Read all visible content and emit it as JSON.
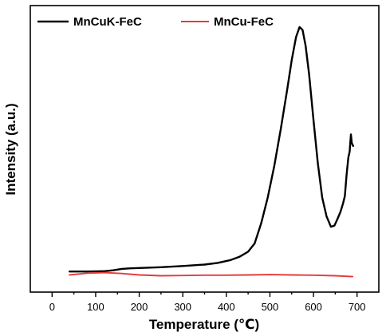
{
  "chart_data": {
    "type": "line",
    "title": "",
    "xlabel": "Temperature (℃)",
    "ylabel": "Intensity (a.u.)",
    "xlim": [
      -50,
      750
    ],
    "ylim": [
      0,
      100
    ],
    "xticks": [
      0,
      100,
      200,
      300,
      400,
      500,
      600,
      700
    ],
    "xtick_labels": [
      "0",
      "100",
      "200",
      "300",
      "400",
      "500",
      "600",
      "700"
    ],
    "y_tick_labels_shown": false,
    "grid": false,
    "legend_position": "top",
    "series": [
      {
        "name": "MnCuK-FeC",
        "color": "#000000",
        "points": [
          [
            40,
            7.2
          ],
          [
            80,
            7.2
          ],
          [
            120,
            7.3
          ],
          [
            140,
            7.6
          ],
          [
            160,
            8.1
          ],
          [
            180,
            8.3
          ],
          [
            200,
            8.4
          ],
          [
            250,
            8.7
          ],
          [
            300,
            9.1
          ],
          [
            350,
            9.6
          ],
          [
            380,
            10.2
          ],
          [
            410,
            11.2
          ],
          [
            430,
            12.3
          ],
          [
            450,
            14.1
          ],
          [
            465,
            17.0
          ],
          [
            480,
            24.0
          ],
          [
            495,
            33.0
          ],
          [
            510,
            44.0
          ],
          [
            525,
            57.0
          ],
          [
            540,
            71.0
          ],
          [
            550,
            81.0
          ],
          [
            560,
            89.0
          ],
          [
            568,
            92.5
          ],
          [
            575,
            91.5
          ],
          [
            582,
            86.0
          ],
          [
            590,
            76.0
          ],
          [
            600,
            60.0
          ],
          [
            610,
            45.0
          ],
          [
            620,
            33.0
          ],
          [
            630,
            26.5
          ],
          [
            640,
            22.8
          ],
          [
            648,
            23.2
          ],
          [
            655,
            25.5
          ],
          [
            662,
            28.0
          ],
          [
            668,
            31.0
          ],
          [
            672,
            33.5
          ],
          [
            676,
            41.0
          ],
          [
            680,
            47.0
          ],
          [
            683,
            49.0
          ],
          [
            686,
            55.0
          ],
          [
            688,
            52.0
          ],
          [
            691,
            51.0
          ]
        ]
      },
      {
        "name": "MnCu-FeC",
        "color": "#e53a3a",
        "points": [
          [
            40,
            6.0
          ],
          [
            80,
            6.6
          ],
          [
            120,
            6.8
          ],
          [
            160,
            6.5
          ],
          [
            200,
            6.0
          ],
          [
            250,
            5.7
          ],
          [
            300,
            5.8
          ],
          [
            350,
            5.9
          ],
          [
            400,
            5.9
          ],
          [
            450,
            6.0
          ],
          [
            500,
            6.1
          ],
          [
            550,
            6.0
          ],
          [
            600,
            5.9
          ],
          [
            650,
            5.7
          ],
          [
            690,
            5.4
          ]
        ]
      }
    ]
  }
}
